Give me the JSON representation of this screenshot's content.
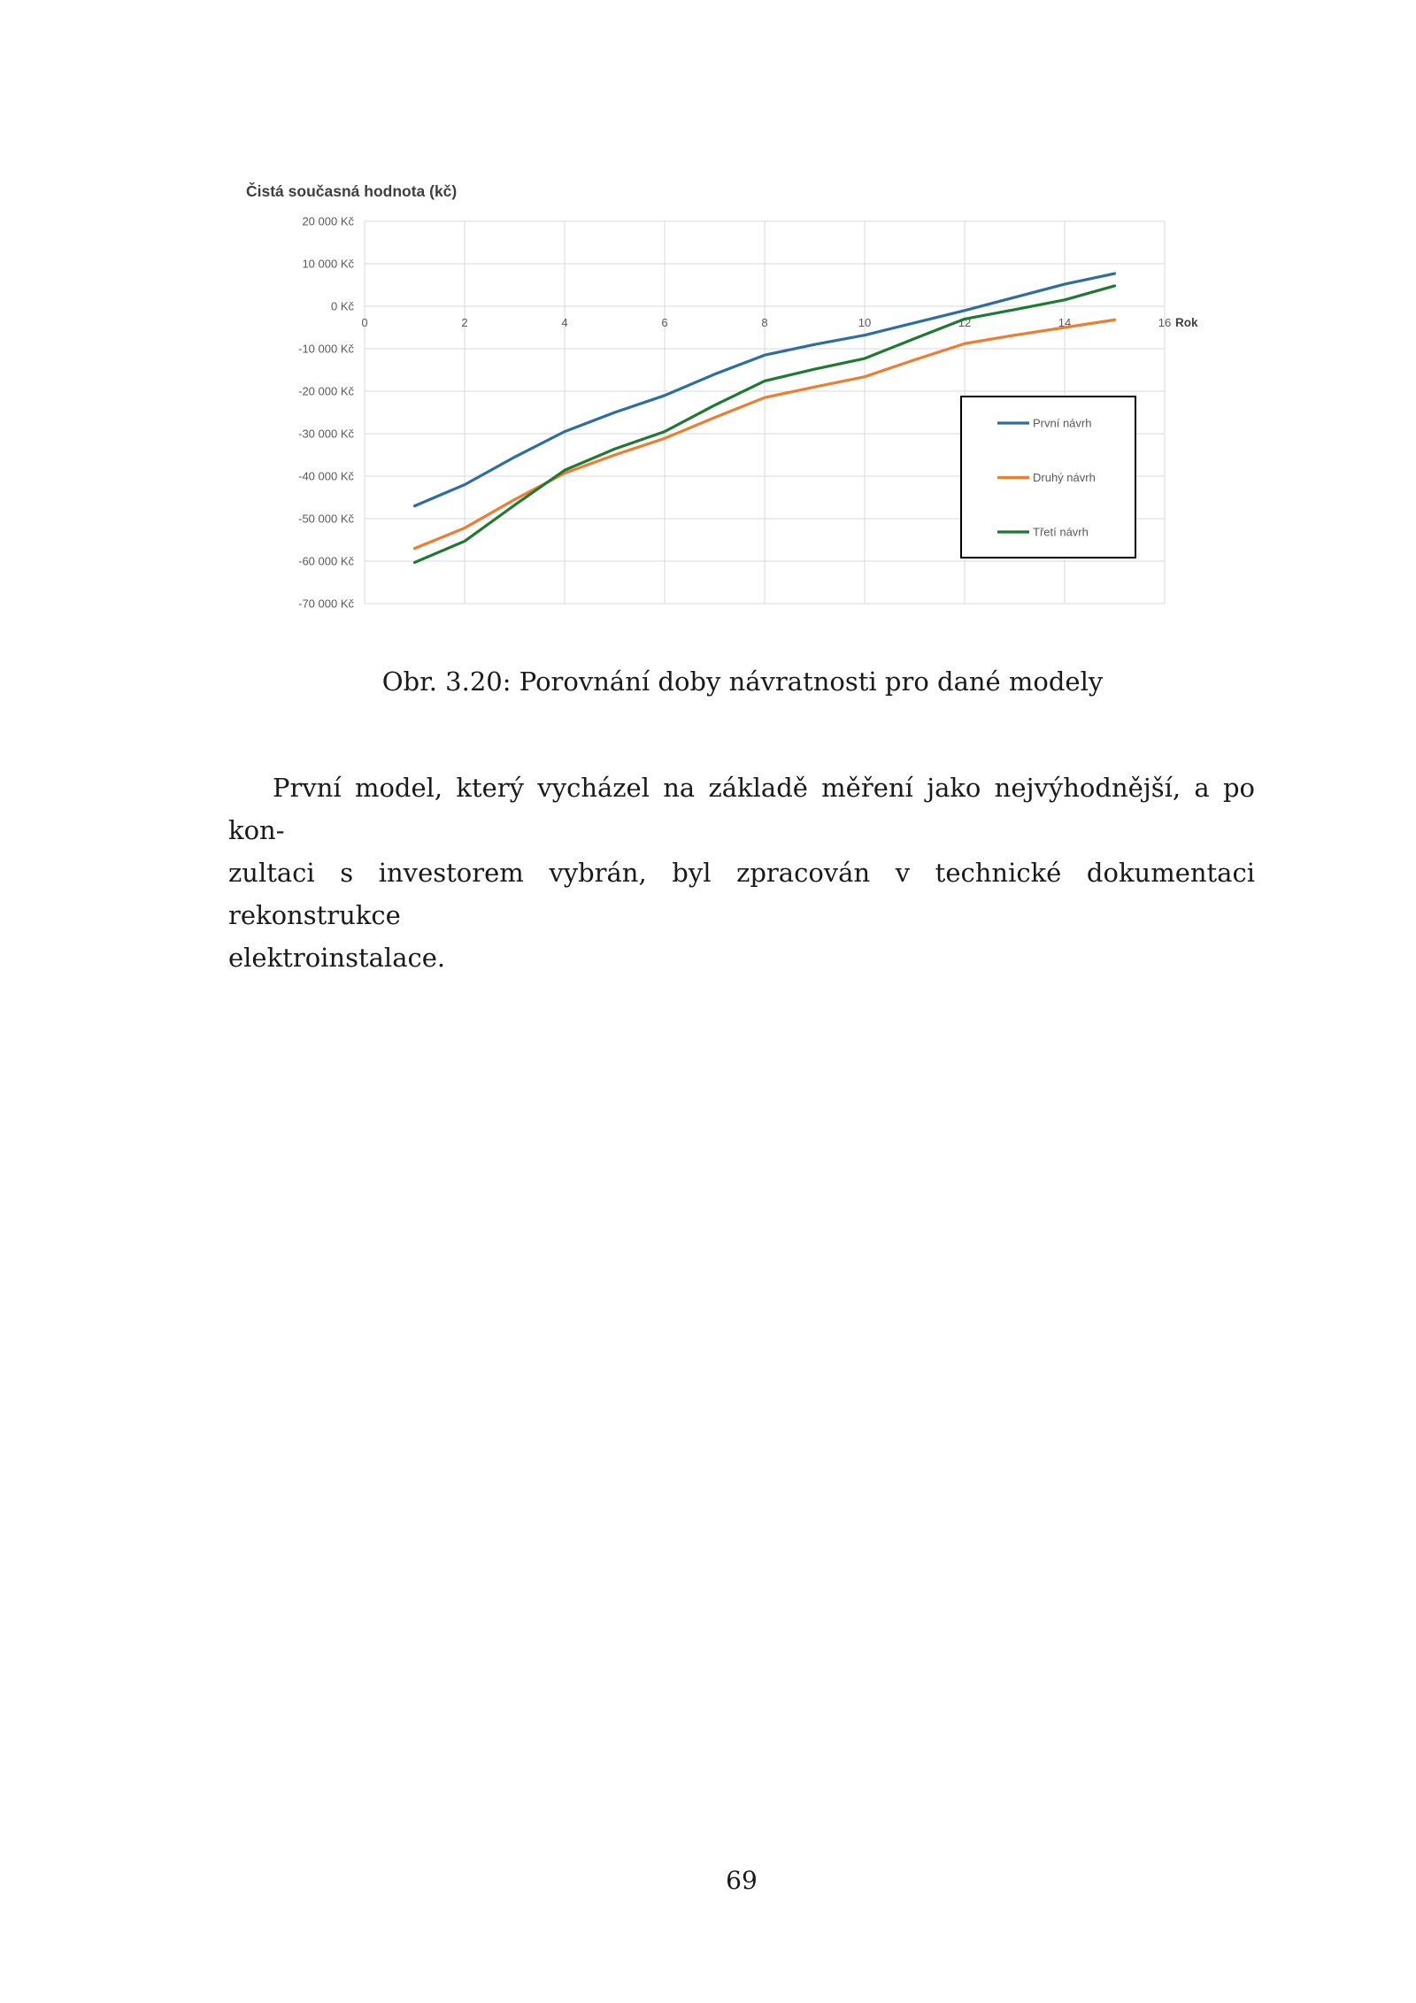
{
  "page": {
    "number": "69"
  },
  "figure": {
    "caption": "Obr. 3.20: Porovnání doby návratnosti pro dané modely"
  },
  "paragraph": {
    "lines": [
      "První model, který vycházel na základě měření jako nejvýhodnější, a po kon-",
      "zultaci s investorem vybrán, byl zpracován v technické dokumentaci rekonstrukce",
      "elektroinstalace."
    ]
  },
  "chart_data": {
    "type": "line",
    "title": "Čistá současná hodnota (kč)",
    "x_axis_label": "Rok",
    "xlim": [
      0,
      16
    ],
    "ylim": [
      -70000,
      20000
    ],
    "grid": true,
    "legend_position": "inside-right-middle",
    "x_ticks": [
      {
        "v": 0,
        "label": "0"
      },
      {
        "v": 2,
        "label": "2"
      },
      {
        "v": 4,
        "label": "4"
      },
      {
        "v": 6,
        "label": "6"
      },
      {
        "v": 8,
        "label": "8"
      },
      {
        "v": 10,
        "label": "10"
      },
      {
        "v": 12,
        "label": "12"
      },
      {
        "v": 14,
        "label": "14"
      },
      {
        "v": 16,
        "label": "16"
      }
    ],
    "y_ticks": [
      {
        "v": 20000,
        "label": "20 000 Kč"
      },
      {
        "v": 10000,
        "label": "10 000 Kč"
      },
      {
        "v": 0,
        "label": "0 Kč"
      },
      {
        "v": -10000,
        "label": "-10 000 Kč"
      },
      {
        "v": -20000,
        "label": "-20 000 Kč"
      },
      {
        "v": -30000,
        "label": "-30 000 Kč"
      },
      {
        "v": -40000,
        "label": "-40 000 Kč"
      },
      {
        "v": -50000,
        "label": "-50 000 Kč"
      },
      {
        "v": -60000,
        "label": "-60 000 Kč"
      },
      {
        "v": -70000,
        "label": "-70 000 Kč"
      }
    ],
    "x": [
      1,
      2,
      3,
      4,
      5,
      6,
      7,
      8,
      9,
      10,
      11,
      12,
      13,
      14,
      15
    ],
    "series": [
      {
        "name": "První návrh",
        "color": "#2D6EA0",
        "values": [
          -47000,
          -42000,
          -35500,
          -29500,
          -25000,
          -21000,
          -16000,
          -11500,
          -9000,
          -6800,
          -3900,
          -1000,
          2100,
          5200,
          7700
        ]
      },
      {
        "name": "Druhý návrh",
        "color": "#ED7D31",
        "values": [
          -57000,
          -52200,
          -45500,
          -39300,
          -35000,
          -31100,
          -26200,
          -21500,
          -19000,
          -16600,
          -12600,
          -8800,
          -6800,
          -5000,
          -3200
        ]
      },
      {
        "name": "Třetí návrh",
        "color": "#1E7A32",
        "values": [
          -60300,
          -55300,
          -46800,
          -38600,
          -33600,
          -29500,
          -23300,
          -17600,
          -14800,
          -12300,
          -7600,
          -3000,
          -800,
          1500,
          4800
        ]
      }
    ],
    "colors": {
      "grid": "#D9D9D9",
      "tick_labels": "#595959",
      "title": "#3F3F3F",
      "axis_label": "#3F3F3F",
      "legend_border": "#000000",
      "legend_background": "#FFFFFF"
    }
  }
}
